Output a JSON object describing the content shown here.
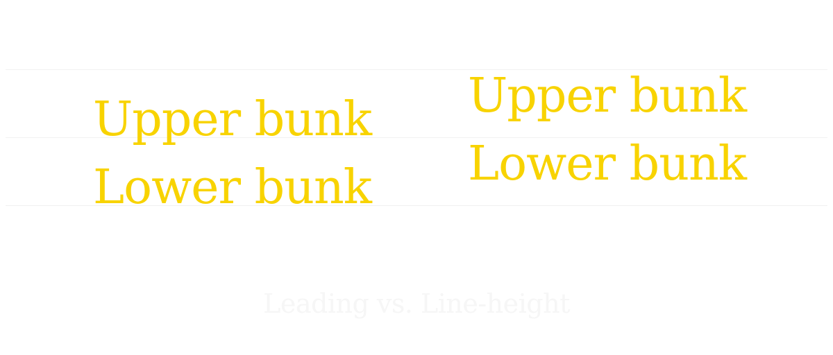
{
  "colors": {
    "text_accent": "#f8d300",
    "guide_lines": "#f1f1f1",
    "caption": "#f6f6f6",
    "background": "#ffffff"
  },
  "left_sample": {
    "upper_label": "Upper bunk",
    "lower_label": "Lower bunk"
  },
  "right_sample": {
    "upper_label": "Upper bunk",
    "lower_label": "Lower bunk"
  },
  "caption": "Leading vs. Line-height"
}
